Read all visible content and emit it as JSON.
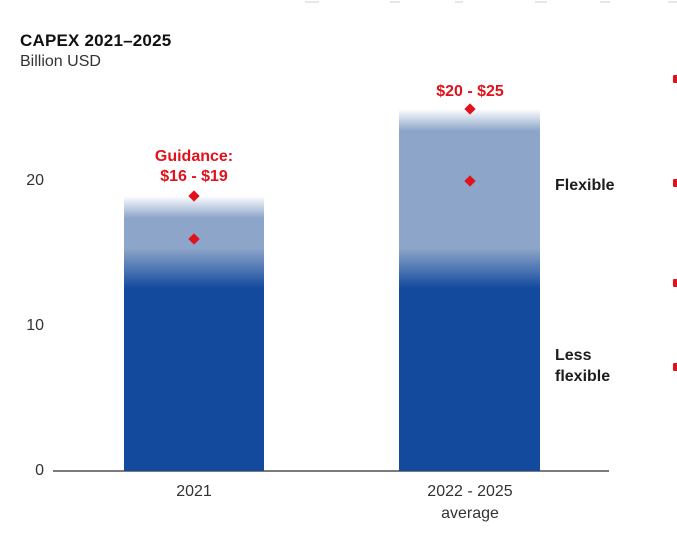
{
  "header": {
    "title": "CAPEX 2021–2025",
    "subtitle": "Billion USD"
  },
  "colors": {
    "dark_blue": "#134A9E",
    "light_blue": "#8CA5C9",
    "red": "#E2121D",
    "axis_gray": "#7B7B7B",
    "text_dark": "#111111",
    "text_gray": "#333333"
  },
  "chart_data": {
    "type": "bar",
    "title": "CAPEX 2021–2025",
    "ylabel": "Billion USD",
    "xlabel": "",
    "grid": false,
    "categories": [
      "2021",
      "2022 - 2025\naverage"
    ],
    "series": [
      {
        "name": "Less flexible",
        "values": [
          14,
          14
        ],
        "color": "#134A9E"
      },
      {
        "name": "Flexible",
        "values": [
          5,
          11
        ],
        "color": "#8CA5C9"
      }
    ],
    "bar_totals": [
      19,
      25
    ],
    "yticks": [
      0,
      10,
      20
    ],
    "ylim": [
      0,
      27
    ],
    "markers": [
      {
        "category_index": 0,
        "values": [
          16,
          19
        ],
        "label": "Guidance:\n$16 - $19"
      },
      {
        "category_index": 1,
        "values": [
          20,
          25
        ],
        "label": "$20 - $25"
      }
    ],
    "segment_labels": [
      {
        "text": "Flexible",
        "y_value": 19.8
      },
      {
        "text": "Less\nflexible",
        "y_value": 7
      }
    ]
  }
}
